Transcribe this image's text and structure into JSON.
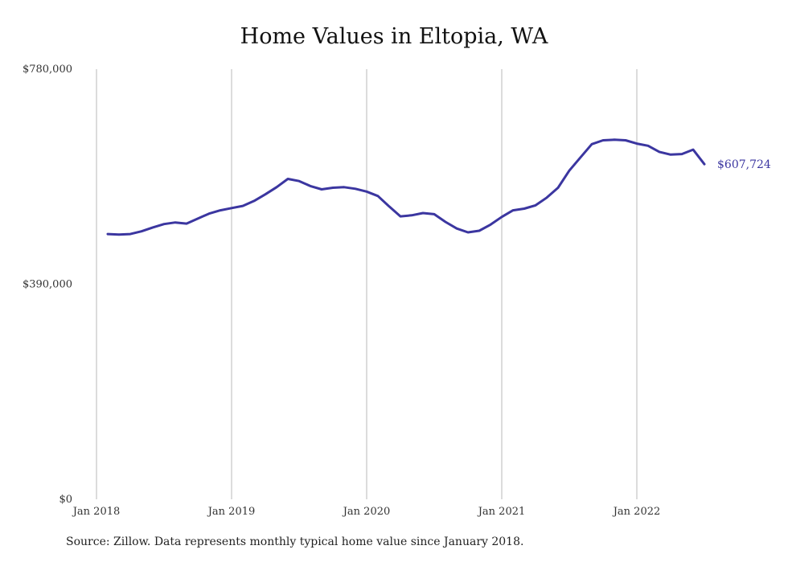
{
  "chart_data": {
    "type": "line",
    "title": "Home Values in Eltopia, WA",
    "source": "Source: Zillow. Data represents monthly typical home value since January 2018.",
    "xlabel": "",
    "ylabel": "",
    "ylim": [
      0,
      780000
    ],
    "y_ticks": [
      {
        "value": 0,
        "label": "$0"
      },
      {
        "value": 390000,
        "label": "$390,000"
      },
      {
        "value": 780000,
        "label": "$780,000"
      }
    ],
    "x_ticks": [
      {
        "value": 0,
        "label": "Jan 2018"
      },
      {
        "value": 12,
        "label": "Jan 2019"
      },
      {
        "value": 24,
        "label": "Jan 2020"
      },
      {
        "value": 36,
        "label": "Jan 2021"
      },
      {
        "value": 48,
        "label": "Jan 2022"
      }
    ],
    "grid": "vertical",
    "line_color": "#3b36a0",
    "end_label": "$607,724",
    "series": [
      {
        "x": [
          1,
          2,
          3,
          4,
          5,
          6,
          7,
          8,
          9,
          10,
          11,
          12,
          13,
          14,
          15,
          16,
          17,
          18,
          19,
          20,
          21,
          22,
          23,
          24,
          25,
          26,
          27,
          28,
          29,
          30,
          31,
          32,
          33,
          34,
          35,
          36,
          37,
          38,
          39,
          40,
          41,
          42,
          43,
          44,
          45,
          46,
          47,
          48,
          49,
          50,
          51,
          52,
          53,
          54
        ],
        "values": [
          481000,
          480000,
          481000,
          486000,
          493000,
          499000,
          502000,
          500000,
          509000,
          518000,
          524000,
          528000,
          532000,
          541000,
          553000,
          566000,
          581000,
          577000,
          568000,
          562000,
          565000,
          566000,
          563000,
          558000,
          550000,
          531000,
          513000,
          515000,
          519000,
          517000,
          503000,
          491000,
          484000,
          487000,
          498000,
          512000,
          524000,
          527000,
          533000,
          547000,
          565000,
          596000,
          620000,
          644000,
          651000,
          652000,
          651000,
          645000,
          641000,
          630000,
          625000,
          626000,
          634000,
          607724
        ]
      }
    ]
  }
}
